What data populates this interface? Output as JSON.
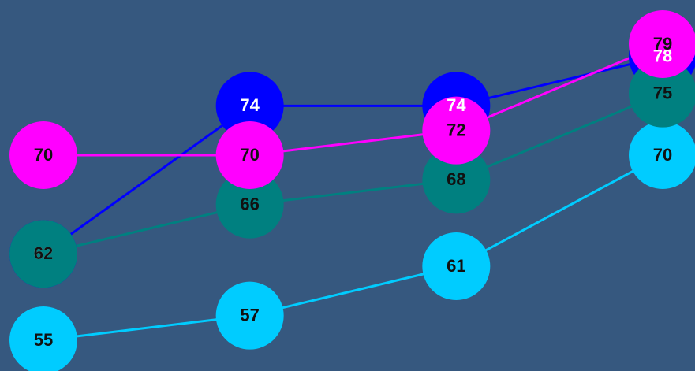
{
  "chart_data": {
    "type": "line",
    "series": [
      {
        "name": "cyan",
        "color": "#00ccff",
        "label_color": "#111111",
        "values": [
          55,
          57,
          61,
          70
        ]
      },
      {
        "name": "blue",
        "color": "#0000ff",
        "label_color": "#ffffff",
        "values": [
          62,
          74,
          74,
          78
        ]
      },
      {
        "name": "teal",
        "color": "#008080",
        "label_color": "#111111",
        "values": [
          62,
          66,
          68,
          75
        ]
      },
      {
        "name": "magenta",
        "color": "#ff00ff",
        "label_color": "#111111",
        "values": [
          70,
          70,
          72,
          79
        ]
      }
    ]
  }
}
